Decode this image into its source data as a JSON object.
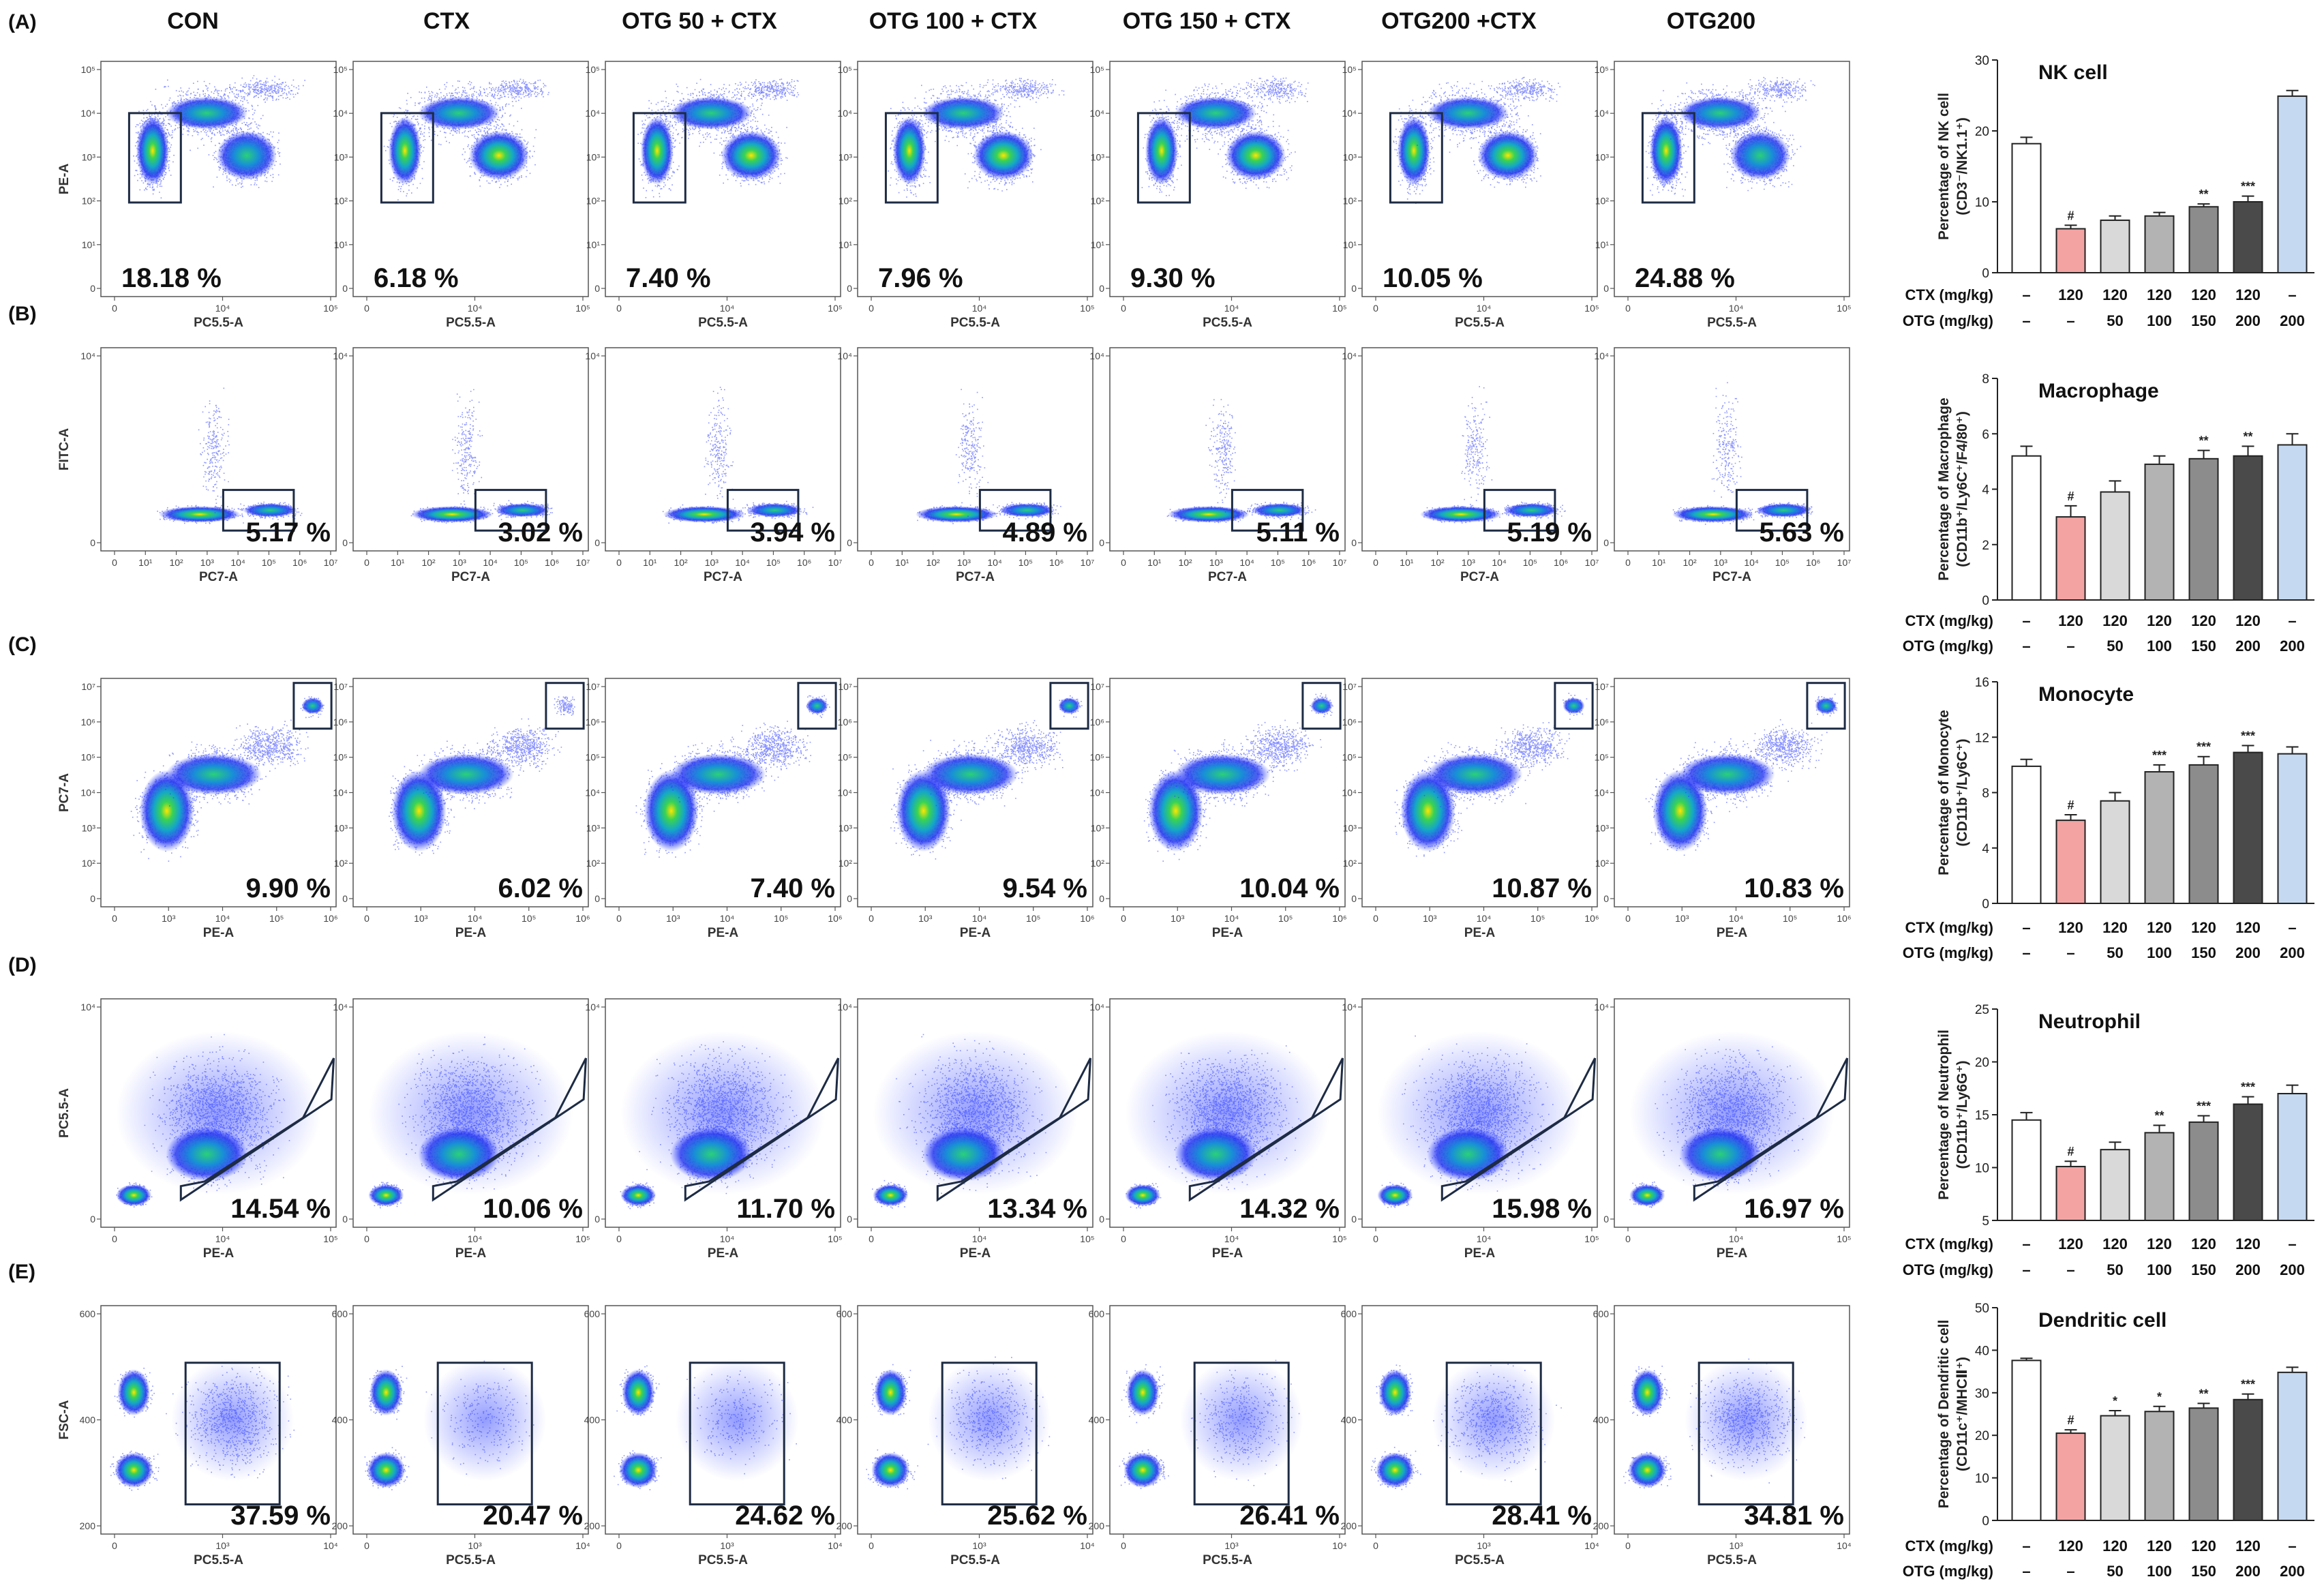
{
  "columns": [
    "CON",
    "CTX",
    "OTG 50 + CTX",
    "OTG 100 + CTX",
    "OTG 150 + CTX",
    "OTG200 +CTX",
    "OTG200"
  ],
  "panels": [
    {
      "label": "(A)",
      "flow": {
        "xlabel": "PC5.5-A",
        "ylabel": "PE-A",
        "xticks": [
          "0",
          "10⁴",
          "10⁵"
        ],
        "yticks": [
          "10⁵",
          "10⁴",
          "10³",
          "10²",
          "10¹",
          "0"
        ],
        "percentages": [
          "18.18 %",
          "6.18 %",
          "7.40 %",
          "7.96 %",
          "9.30 %",
          "10.05 %",
          "24.88 %"
        ]
      }
    },
    {
      "label": "(B)",
      "flow": {
        "xlabel": "PC7-A",
        "ylabel": "FITC-A",
        "xticks": [
          "0",
          "10¹",
          "10²",
          "10³",
          "10⁴",
          "10⁵",
          "10⁶",
          "10⁷"
        ],
        "yticks": [
          "10⁴",
          "0"
        ],
        "percentages": [
          "5.17 %",
          "3.02 %",
          "3.94 %",
          "4.89 %",
          "5.11 %",
          "5.19 %",
          "5.63 %"
        ]
      }
    },
    {
      "label": "(C)",
      "flow": {
        "xlabel": "PE-A",
        "ylabel": "PC7-A",
        "xticks": [
          "0",
          "10³",
          "10⁴",
          "10⁵",
          "10⁶"
        ],
        "yticks": [
          "10⁷",
          "10⁶",
          "10⁵",
          "10⁴",
          "10³",
          "10²",
          "0"
        ],
        "percentages": [
          "9.90 %",
          "6.02 %",
          "7.40 %",
          "9.54 %",
          "10.04 %",
          "10.87 %",
          "10.83 %"
        ]
      }
    },
    {
      "label": "(D)",
      "flow": {
        "xlabel": "PE-A",
        "ylabel": "PC5.5-A",
        "xticks": [
          "0",
          "10⁴",
          "10⁵"
        ],
        "yticks": [
          "10⁴",
          "0"
        ],
        "percentages": [
          "14.54 %",
          "10.06 %",
          "11.70 %",
          "13.34 %",
          "14.32 %",
          "15.98 %",
          "16.97 %"
        ]
      }
    },
    {
      "label": "(E)",
      "flow": {
        "xlabel": "PC5.5-A",
        "ylabel": "FSC-A",
        "xticks": [
          "0",
          "10³",
          "10⁴"
        ],
        "yticks": [
          "600",
          "400",
          "200"
        ],
        "percentages": [
          "37.59 %",
          "20.47 %",
          "24.62 %",
          "25.62 %",
          "26.41 %",
          "28.41 %",
          "34.81 %"
        ]
      }
    }
  ],
  "bar_table": {
    "row1_label": "CTX (mg/kg)",
    "row2_label": "OTG (mg/kg)",
    "ctx": [
      "–",
      "120",
      "120",
      "120",
      "120",
      "120",
      "–"
    ],
    "otg": [
      "–",
      "–",
      "50",
      "100",
      "150",
      "200",
      "200"
    ]
  },
  "bar_colors": [
    "#ffffff",
    "#f4a3a3",
    "#d9d9d9",
    "#b3b3b3",
    "#8c8c8c",
    "#4a4a4a",
    "#c5d9f1"
  ],
  "chart_data": [
    {
      "type": "bar",
      "title": "NK cell",
      "ylabel": [
        "Percentage of NK cell",
        "(CD3⁻/NK1.1⁺)"
      ],
      "categories": [
        "CON",
        "CTX",
        "OTG 50 + CTX",
        "OTG 100 + CTX",
        "OTG 150 + CTX",
        "OTG200 +CTX",
        "OTG200"
      ],
      "values": [
        18.2,
        6.2,
        7.4,
        8.0,
        9.3,
        10.0,
        24.9
      ],
      "errors": [
        0.9,
        0.5,
        0.6,
        0.5,
        0.4,
        0.8,
        0.8
      ],
      "significance": [
        "",
        "#",
        "",
        "",
        "**",
        "***",
        ""
      ],
      "ylim": [
        0,
        30
      ],
      "yticks": [
        "0",
        "10",
        "20",
        "30"
      ]
    },
    {
      "type": "bar",
      "title": "Macrophage",
      "ylabel": [
        "Percentage of Macrophage",
        "(CD11b⁺/Ly6C⁺/F4/80⁺)"
      ],
      "categories": [
        "CON",
        "CTX",
        "OTG 50 + CTX",
        "OTG 100 + CTX",
        "OTG 150 + CTX",
        "OTG200 +CTX",
        "OTG200"
      ],
      "values": [
        5.2,
        3.0,
        3.9,
        4.9,
        5.1,
        5.2,
        5.6
      ],
      "errors": [
        0.35,
        0.4,
        0.4,
        0.3,
        0.3,
        0.35,
        0.4
      ],
      "significance": [
        "",
        "#",
        "",
        "",
        "**",
        "**",
        ""
      ],
      "ylim": [
        0,
        8
      ],
      "yticks": [
        "0",
        "2",
        "4",
        "6",
        "8"
      ]
    },
    {
      "type": "bar",
      "title": "Monocyte",
      "ylabel": [
        "Percentage of Monocyte",
        "(CD11b⁺/Ly6C⁺)"
      ],
      "categories": [
        "CON",
        "CTX",
        "OTG 50 + CTX",
        "OTG 100 + CTX",
        "OTG 150 + CTX",
        "OTG200 +CTX",
        "OTG200"
      ],
      "values": [
        9.9,
        6.0,
        7.4,
        9.5,
        10.0,
        10.9,
        10.8
      ],
      "errors": [
        0.5,
        0.4,
        0.6,
        0.5,
        0.6,
        0.5,
        0.5
      ],
      "significance": [
        "",
        "#",
        "",
        "***",
        "***",
        "***",
        ""
      ],
      "ylim": [
        0,
        16
      ],
      "yticks": [
        "0",
        "4",
        "8",
        "12",
        "16"
      ]
    },
    {
      "type": "bar",
      "title": "Neutrophil",
      "ylabel": [
        "Percentage of Neutrophil",
        "(CD11b⁺/Ly6G⁺)"
      ],
      "categories": [
        "CON",
        "CTX",
        "OTG 50 + CTX",
        "OTG 100 + CTX",
        "OTG 150 + CTX",
        "OTG200 +CTX",
        "OTG200"
      ],
      "values": [
        14.5,
        10.1,
        11.7,
        13.3,
        14.3,
        16.0,
        17.0
      ],
      "errors": [
        0.7,
        0.5,
        0.7,
        0.7,
        0.6,
        0.7,
        0.8
      ],
      "significance": [
        "",
        "#",
        "",
        "**",
        "***",
        "***",
        ""
      ],
      "ylim": [
        5,
        25
      ],
      "yticks": [
        "5",
        "10",
        "15",
        "20",
        "25"
      ]
    },
    {
      "type": "bar",
      "title": "Dendritic cell",
      "ylabel": [
        "Percentage of Dendritic cell",
        "(CD11c⁺/MHCⅡ⁺)"
      ],
      "categories": [
        "CON",
        "CTX",
        "OTG 50 + CTX",
        "OTG 100 + CTX",
        "OTG 150 + CTX",
        "OTG200 +CTX",
        "OTG200"
      ],
      "values": [
        37.6,
        20.5,
        24.6,
        25.6,
        26.4,
        28.4,
        34.8
      ],
      "errors": [
        0.5,
        0.8,
        1.2,
        1.2,
        1.1,
        1.3,
        1.2
      ],
      "significance": [
        "",
        "#",
        "*",
        "*",
        "**",
        "***",
        ""
      ],
      "ylim": [
        0,
        50
      ],
      "yticks": [
        "0",
        "10",
        "20",
        "30",
        "40",
        "50"
      ]
    }
  ]
}
